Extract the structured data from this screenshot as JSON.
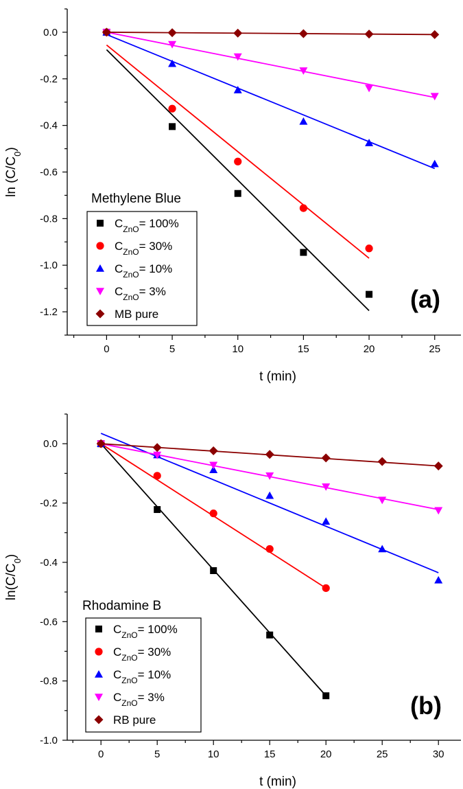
{
  "chart_data": [
    {
      "type": "scatter",
      "panel_label": "(a)",
      "legend_title": "Methylene Blue",
      "xlabel": "t (min)",
      "ylabel": "ln (C/C0)",
      "xlim": [
        -3,
        27
      ],
      "ylim": [
        -1.3,
        0.1
      ],
      "xticks": [
        0,
        5,
        10,
        15,
        20,
        25
      ],
      "yticks": [
        0.0,
        -0.2,
        -0.4,
        -0.6,
        -0.8,
        -1.0,
        -1.2
      ],
      "ytick_labels": [
        "0.0",
        "-0.2",
        "-0.4",
        "-0.6",
        "-0.8",
        "-1.0",
        "-1.2"
      ],
      "grid": false,
      "legend_position": "bottom-left",
      "series": [
        {
          "legend_main": "C",
          "legend_sub": "ZnO",
          "legend_rest": "= 100%",
          "color": "#000000",
          "marker": "square",
          "x": [
            0,
            5,
            10,
            15,
            20
          ],
          "y": [
            0,
            -0.405,
            -0.692,
            -0.945,
            -1.125
          ],
          "fit": [
            [
              0,
              -0.075
            ],
            [
              20,
              -1.195
            ]
          ]
        },
        {
          "legend_main": "C",
          "legend_sub": "ZnO",
          "legend_rest": "= 30%",
          "color": "#ff0000",
          "marker": "circle",
          "x": [
            0,
            5,
            10,
            15,
            20
          ],
          "y": [
            0,
            -0.328,
            -0.555,
            -0.755,
            -0.928
          ],
          "fit": [
            [
              0,
              -0.055
            ],
            [
              20,
              -0.97
            ]
          ]
        },
        {
          "legend_main": "C",
          "legend_sub": "ZnO",
          "legend_rest": "= 10%",
          "color": "#0000ff",
          "marker": "triangle-up",
          "x": [
            0,
            5,
            10,
            15,
            20,
            25
          ],
          "y": [
            0,
            -0.135,
            -0.248,
            -0.383,
            -0.475,
            -0.565
          ],
          "fit": [
            [
              0,
              -0.01
            ],
            [
              25,
              -0.585
            ]
          ]
        },
        {
          "legend_main": "C",
          "legend_sub": "ZnO",
          "legend_rest": "= 3%",
          "color": "#ff00ff",
          "marker": "triangle-down",
          "x": [
            0,
            5,
            10,
            15,
            20,
            25
          ],
          "y": [
            0,
            -0.052,
            -0.105,
            -0.165,
            -0.24,
            -0.275
          ],
          "fit": [
            [
              0,
              0.0
            ],
            [
              25,
              -0.28
            ]
          ]
        },
        {
          "legend_main": "MB pure",
          "legend_sub": "",
          "legend_rest": "",
          "color": "#8b0000",
          "marker": "diamond",
          "x": [
            0,
            5,
            10,
            15,
            20,
            25
          ],
          "y": [
            0,
            -0.002,
            -0.004,
            -0.006,
            -0.008,
            -0.01
          ],
          "fit": [
            [
              0,
              0.0
            ],
            [
              25,
              -0.01
            ]
          ]
        }
      ]
    },
    {
      "type": "scatter",
      "panel_label": "(b)",
      "legend_title": "Rhodamine B",
      "xlabel": "t (min)",
      "ylabel": "ln(C/C0)",
      "xlim": [
        -3,
        32
      ],
      "ylim": [
        -1.0,
        0.1
      ],
      "xticks": [
        0,
        5,
        10,
        15,
        20,
        25,
        30
      ],
      "yticks": [
        0.0,
        -0.2,
        -0.4,
        -0.6,
        -0.8,
        -1.0
      ],
      "ytick_labels": [
        "0.0",
        "-0.2",
        "-0.4",
        "-0.6",
        "-0.8",
        "-1.0"
      ],
      "grid": false,
      "legend_position": "bottom-left",
      "series": [
        {
          "legend_main": "C",
          "legend_sub": "ZnO",
          "legend_rest": "= 100%",
          "color": "#000000",
          "marker": "square",
          "x": [
            0,
            5,
            10,
            15,
            20
          ],
          "y": [
            0,
            -0.222,
            -0.428,
            -0.645,
            -0.85
          ],
          "fit": [
            [
              0,
              0.0
            ],
            [
              20,
              -0.85
            ]
          ]
        },
        {
          "legend_main": "C",
          "legend_sub": "ZnO",
          "legend_rest": "= 30%",
          "color": "#ff0000",
          "marker": "circle",
          "x": [
            0,
            5,
            10,
            15,
            20
          ],
          "y": [
            0,
            -0.108,
            -0.235,
            -0.355,
            -0.487
          ],
          "fit": [
            [
              0,
              0.0
            ],
            [
              20,
              -0.487
            ]
          ]
        },
        {
          "legend_main": "C",
          "legend_sub": "ZnO",
          "legend_rest": "= 10%",
          "color": "#0000ff",
          "marker": "triangle-up",
          "x": [
            0,
            5,
            10,
            15,
            20,
            25,
            30
          ],
          "y": [
            0,
            -0.038,
            -0.088,
            -0.175,
            -0.262,
            -0.355,
            -0.46
          ],
          "fit": [
            [
              0,
              0.035
            ],
            [
              30,
              -0.435
            ]
          ]
        },
        {
          "legend_main": "C",
          "legend_sub": "ZnO",
          "legend_rest": "= 3%",
          "color": "#ff00ff",
          "marker": "triangle-down",
          "x": [
            0,
            5,
            10,
            15,
            20,
            25,
            30
          ],
          "y": [
            0,
            -0.038,
            -0.072,
            -0.108,
            -0.145,
            -0.19,
            -0.225
          ],
          "fit": [
            [
              0,
              0.0
            ],
            [
              30,
              -0.222
            ]
          ]
        },
        {
          "legend_main": "RB pure",
          "legend_sub": "",
          "legend_rest": "",
          "color": "#8b0000",
          "marker": "diamond",
          "x": [
            0,
            5,
            10,
            15,
            20,
            25,
            30
          ],
          "y": [
            0,
            -0.013,
            -0.024,
            -0.036,
            -0.048,
            -0.06,
            -0.075
          ],
          "fit": [
            [
              0,
              0.0
            ],
            [
              30,
              -0.075
            ]
          ]
        }
      ]
    }
  ]
}
